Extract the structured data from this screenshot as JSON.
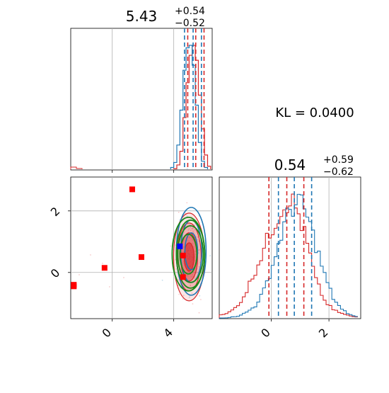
{
  "colors": {
    "red": "#d62728",
    "blue": "#1f77b4",
    "green": "#1a8a1a",
    "bright_blue": "#0000ff",
    "bright_red": "#ff0000",
    "grid": "#b0b0b0",
    "axis": "#000000"
  },
  "chart_data": [
    {
      "type": "histogram",
      "panel": "marginal-param1",
      "title_main": "5.43",
      "title_sup": "+0.54",
      "title_sub": "−0.52",
      "xlim": [
        -2.7,
        6.5
      ],
      "quantile_lines": {
        "red": [
          4.91,
          5.43,
          5.97
        ],
        "blue": [
          4.7,
          5.26,
          5.8
        ]
      },
      "series": [
        {
          "color": "red",
          "x": [
            4.1,
            4.3,
            4.5,
            4.7,
            4.9,
            5.1,
            5.3,
            5.5,
            5.7,
            5.9,
            6.1,
            6.3
          ],
          "values": [
            0.01,
            0.04,
            0.15,
            0.42,
            0.7,
            0.92,
            1.0,
            0.88,
            0.6,
            0.33,
            0.12,
            0.03
          ]
        },
        {
          "color": "blue",
          "x": [
            3.9,
            4.1,
            4.3,
            4.5,
            4.7,
            4.9,
            5.1,
            5.3,
            5.5,
            5.7,
            5.9,
            6.1
          ],
          "values": [
            0.02,
            0.06,
            0.2,
            0.48,
            0.8,
            0.98,
            1.0,
            0.84,
            0.52,
            0.22,
            0.07,
            0.02
          ]
        }
      ]
    },
    {
      "type": "scatter",
      "panel": "joint",
      "xlim": [
        -2.7,
        6.5
      ],
      "ylim": [
        -1.5,
        3.1
      ],
      "xticks": [
        0,
        4
      ],
      "yticks": [
        0,
        2
      ],
      "points_red": [
        [
          -2.5,
          -0.4
        ],
        [
          -2.5,
          -0.45
        ],
        [
          -0.5,
          0.15
        ],
        [
          1.3,
          2.7
        ],
        [
          1.9,
          0.5
        ],
        [
          4.6,
          0.55
        ],
        [
          4.6,
          -0.15
        ]
      ],
      "point_blue": [
        4.4,
        0.85
      ]
    },
    {
      "type": "histogram",
      "panel": "marginal-param2",
      "title_main": "0.54",
      "title_sup": "+0.59",
      "title_sub": "−0.62",
      "xlim": [
        -1.8,
        3.1
      ],
      "xticks": [
        0,
        2
      ],
      "quantile_lines": {
        "red": [
          -0.08,
          0.54,
          1.13
        ],
        "blue": [
          0.25,
          0.8,
          1.4
        ]
      },
      "series": [
        {
          "color": "red",
          "x": [
            -1.8,
            -1.5,
            -1.2,
            -0.9,
            -0.6,
            -0.3,
            0.0,
            0.3,
            0.6,
            0.9,
            1.2,
            1.5,
            1.8,
            2.1,
            2.4,
            2.7,
            3.0
          ],
          "values": [
            0.03,
            0.05,
            0.1,
            0.22,
            0.38,
            0.55,
            0.72,
            0.86,
            0.95,
            0.82,
            0.58,
            0.3,
            0.14,
            0.07,
            0.04,
            0.02,
            0.01
          ]
        },
        {
          "color": "blue",
          "x": [
            -1.8,
            -1.5,
            -1.2,
            -0.9,
            -0.6,
            -0.3,
            0.0,
            0.3,
            0.6,
            0.9,
            1.2,
            1.5,
            1.8,
            2.1,
            2.4,
            2.7,
            3.0
          ],
          "values": [
            0.0,
            0.01,
            0.02,
            0.05,
            0.1,
            0.22,
            0.42,
            0.66,
            0.86,
            0.92,
            0.8,
            0.58,
            0.34,
            0.16,
            0.07,
            0.03,
            0.01
          ]
        }
      ]
    }
  ],
  "annotation": {
    "kl_text": "KL = 0.0400"
  }
}
